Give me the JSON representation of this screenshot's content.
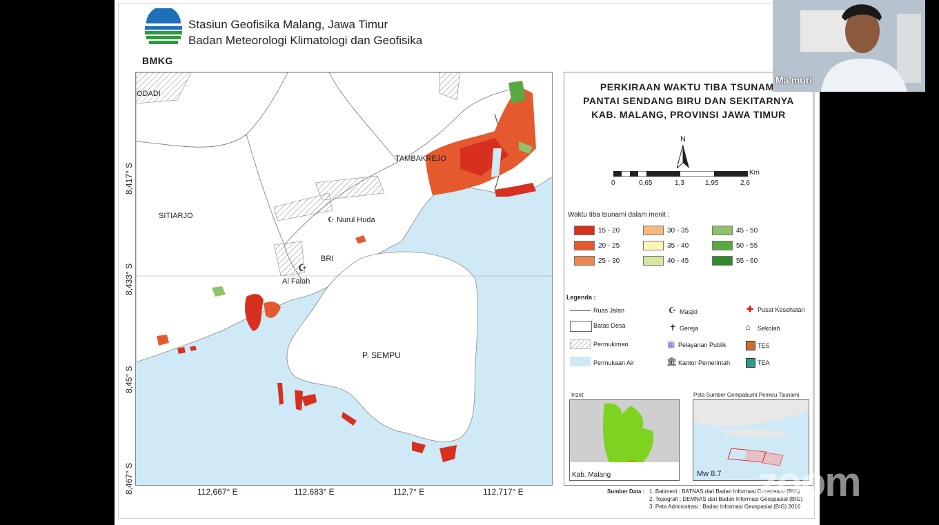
{
  "header": {
    "logo_text": "BMKG",
    "line1": "Stasiun Geofisika Malang, Jawa Timur",
    "line2": "Badan Meteorologi Klimatologi dan Geofisika"
  },
  "map": {
    "lat_ticks": [
      "8,417° S",
      "8,433° S",
      "8,45° S",
      "8,467° S"
    ],
    "lon_ticks": [
      "112,667° E",
      "112,683° E",
      "112,7° E",
      "112,717° E"
    ],
    "places": {
      "odadi": "ODADI",
      "sitiarjo": "SITIARJO",
      "tambakrejo": "TAMBAKREJO",
      "nurul_huda": "Nurul Huda",
      "bri": "BRI",
      "al_falah": "Al Falah",
      "sempu": "P. SEMPU"
    }
  },
  "panel": {
    "title_lines": [
      "PERKIRAAN WAKTU TIBA TSUNAMI",
      "PANTAI SENDANG BIRU DAN SEKITARNYA",
      "KAB. MALANG, PROVINSI JAWA TIMUR"
    ],
    "north": "N",
    "scale_unit": "Km",
    "scale_values": [
      "0",
      "0,65",
      "1,3",
      "1,95",
      "2,6"
    ],
    "tsunami_heading": "Waktu tiba tsunami dalam menit :",
    "tsunami_classes": [
      {
        "label": "15 - 20",
        "color": "#d7301f"
      },
      {
        "label": "20 - 25",
        "color": "#e45a2e"
      },
      {
        "label": "25 - 30",
        "color": "#f0864f"
      },
      {
        "label": "30 - 35",
        "color": "#f7b97a"
      },
      {
        "label": "35 - 40",
        "color": "#fdf4b8"
      },
      {
        "label": "40 - 45",
        "color": "#d4e8a0"
      },
      {
        "label": "45 - 50",
        "color": "#8fc26a"
      },
      {
        "label": "50 - 55",
        "color": "#5aa842"
      },
      {
        "label": "55 - 60",
        "color": "#2f8a2a"
      }
    ],
    "legend_heading": "Legenda :",
    "legend": {
      "ruas_jalan": "Ruas Jalan",
      "batas_desa": "Batas Desa",
      "permukiman": "Permukiman",
      "permukaan_air": "Permukaan Air",
      "masjid": "Masjid",
      "gereja": "Gereja",
      "pelayanan_publik": "Pelayanan Publik",
      "kantor_pemerintah": "Kantor Pemerintah",
      "pusat_kesehatan": "Pusat Kesehatan",
      "sekolah": "Sekolah",
      "tes": "TES",
      "tea": "TEA"
    },
    "inset_title": "Inzet",
    "inset_label": "Kab. Malang",
    "quake_title": "Peta Sumber Gempabumi Pemicu Tsunami",
    "quake_mag": "Mw 8.7",
    "source_heading": "Sumber Data :",
    "sources": [
      "1. Batimetri  : BATNAS dari Badan Informasi Geospasial (BIG)",
      "2. Topografi : DEMNAS dari Badan Informasi Geospasial (BIG)",
      "3. Peta Administrasi : Badan Informasi Geospasial (BIG) 2016"
    ]
  },
  "webcam": {
    "name": "Ma'muri"
  },
  "watermark": "zoom"
}
